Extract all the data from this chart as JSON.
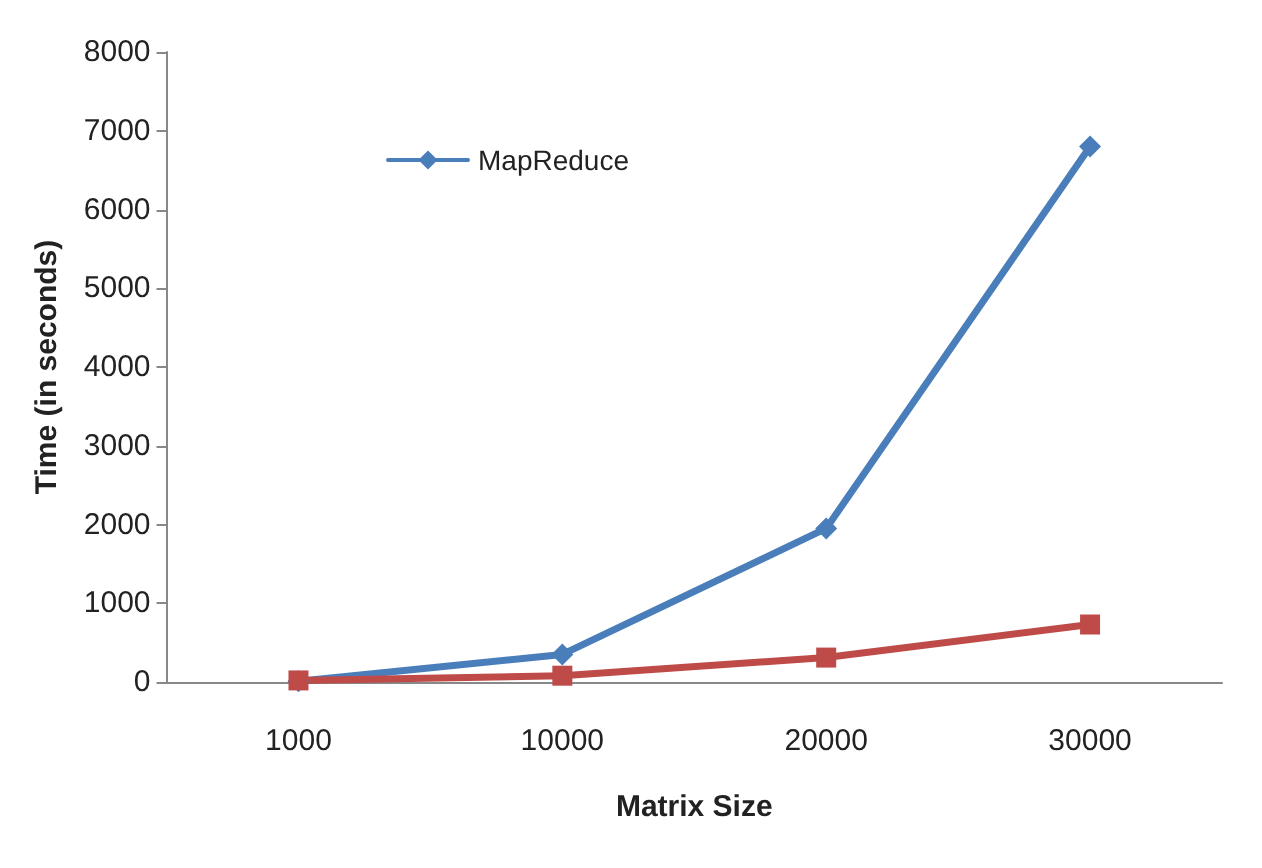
{
  "chart_data": {
    "type": "line",
    "xlabel": "Matrix Size",
    "ylabel": "Time (in seconds)",
    "categories": [
      "1000",
      "10000",
      "20000",
      "30000"
    ],
    "series": [
      {
        "name": "MapReduce",
        "color": "#4a7ebb",
        "marker": "diamond",
        "values": [
          10,
          350,
          1950,
          6800
        ]
      },
      {
        "color": "#be4b48",
        "marker": "square",
        "values": [
          20,
          80,
          310,
          730
        ]
      }
    ],
    "ylim": [
      0,
      8000
    ],
    "yticks": [
      0,
      1000,
      2000,
      3000,
      4000,
      5000,
      6000,
      7000,
      8000
    ],
    "grid": false,
    "legend": "top left"
  }
}
